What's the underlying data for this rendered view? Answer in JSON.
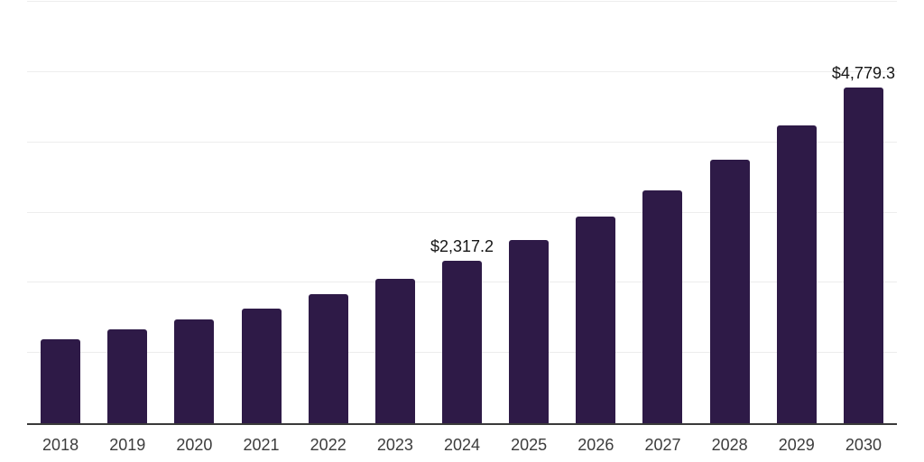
{
  "colors": {
    "background": "#FFFFFF",
    "bar": "#2E1A47",
    "grid": "#EDEDED",
    "axis": "#3A3A3A",
    "data_label": "#161616",
    "tick_label": "#3C3C3C"
  },
  "chart_data": {
    "type": "bar",
    "title": "",
    "xlabel": "",
    "ylabel": "",
    "categories": [
      "2018",
      "2019",
      "2020",
      "2021",
      "2022",
      "2023",
      "2024",
      "2025",
      "2026",
      "2027",
      "2028",
      "2029",
      "2030"
    ],
    "values": [
      1195,
      1336,
      1478,
      1632,
      1837,
      2056,
      2317.2,
      2602,
      2942,
      3315,
      3746,
      4240,
      4779.3
    ],
    "point_labels": [
      "",
      "",
      "",
      "",
      "",
      "",
      "$2,317.2",
      "",
      "",
      "",
      "",
      "",
      "$4,779.3"
    ],
    "ylim": [
      0,
      6000
    ],
    "gridline_step": 1000,
    "grid": true,
    "legend": "none",
    "bar_color": "#2E1A47"
  }
}
